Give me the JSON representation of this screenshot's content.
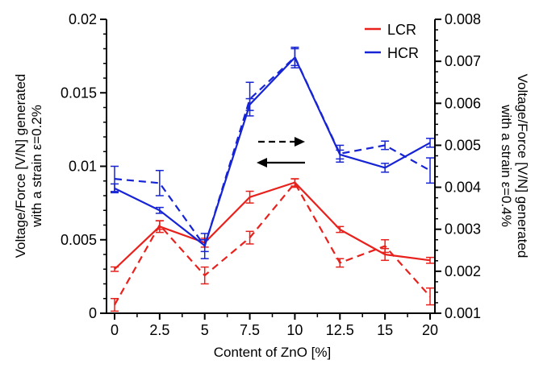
{
  "chart_data": {
    "type": "line",
    "xlabel": "Content of ZnO [%]",
    "ylabel_left": "Voltage/Force [V/N] generated\nwith a strain ε=0.2%",
    "ylabel_right": "Voltage/Force [V/N] generated\nwith a strain ε=0.4%",
    "x_ticks": [
      "0",
      "2.5",
      "5",
      "7.5",
      "10",
      "12.5",
      "15",
      "20"
    ],
    "x_positions": [
      0,
      1,
      2,
      3,
      4,
      5,
      6,
      7
    ],
    "y_left_ticks": [
      "0",
      "0.005",
      "0.01",
      "0.015",
      "0.02"
    ],
    "y_left_range": [
      0,
      0.02
    ],
    "y_right_ticks": [
      "0.001",
      "0.002",
      "0.003",
      "0.004",
      "0.005",
      "0.006",
      "0.007",
      "0.008"
    ],
    "y_right_range": [
      0.001,
      0.008
    ],
    "legend": {
      "position": "top-right",
      "entries": [
        {
          "label": "LCR",
          "color": "#e8211c"
        },
        {
          "label": "HCR",
          "color": "#1624d6"
        }
      ]
    },
    "annotations": [
      {
        "type": "arrow",
        "direction": "right",
        "style": "dashed",
        "meaning": "right axis"
      },
      {
        "type": "arrow",
        "direction": "left",
        "style": "solid",
        "meaning": "left axis"
      }
    ],
    "series": [
      {
        "name": "LCR",
        "axis": "left",
        "style": "solid",
        "color": "#e8211c",
        "values": [
          0.003,
          0.0059,
          0.0048,
          0.0079,
          0.0089,
          0.0057,
          0.004,
          0.0036
        ],
        "errors": [
          0.00015,
          0.0004,
          0.0003,
          0.0004,
          0.00025,
          0.0002,
          0.0004,
          0.0002
        ]
      },
      {
        "name": "LCR",
        "axis": "right",
        "style": "dashed",
        "color": "#e8211c",
        "values": [
          0.0012,
          0.0031,
          0.0019,
          0.0028,
          0.0041,
          0.0022,
          0.0026,
          0.0014
        ],
        "errors": [
          0.00015,
          0.0001,
          0.0002,
          0.00015,
          0.0001,
          0.0001,
          0.00015,
          0.0002
        ]
      },
      {
        "name": "HCR",
        "axis": "left",
        "style": "solid",
        "color": "#1624d6",
        "values": [
          0.0085,
          0.007,
          0.0046,
          0.0142,
          0.0174,
          0.0108,
          0.0099,
          0.0116
        ],
        "errors": [
          0.0003,
          0.0002,
          0.0004,
          0.0004,
          0.0007,
          0.0003,
          0.0003,
          0.0003
        ]
      },
      {
        "name": "HCR",
        "axis": "right",
        "style": "dashed",
        "color": "#1624d6",
        "values": [
          0.0042,
          0.0041,
          0.0026,
          0.0061,
          0.0071,
          0.0048,
          0.005,
          0.0044
        ],
        "errors": [
          0.0003,
          0.0003,
          0.0003,
          0.0004,
          0.0002,
          0.0002,
          0.0001,
          0.0003
        ]
      }
    ]
  }
}
